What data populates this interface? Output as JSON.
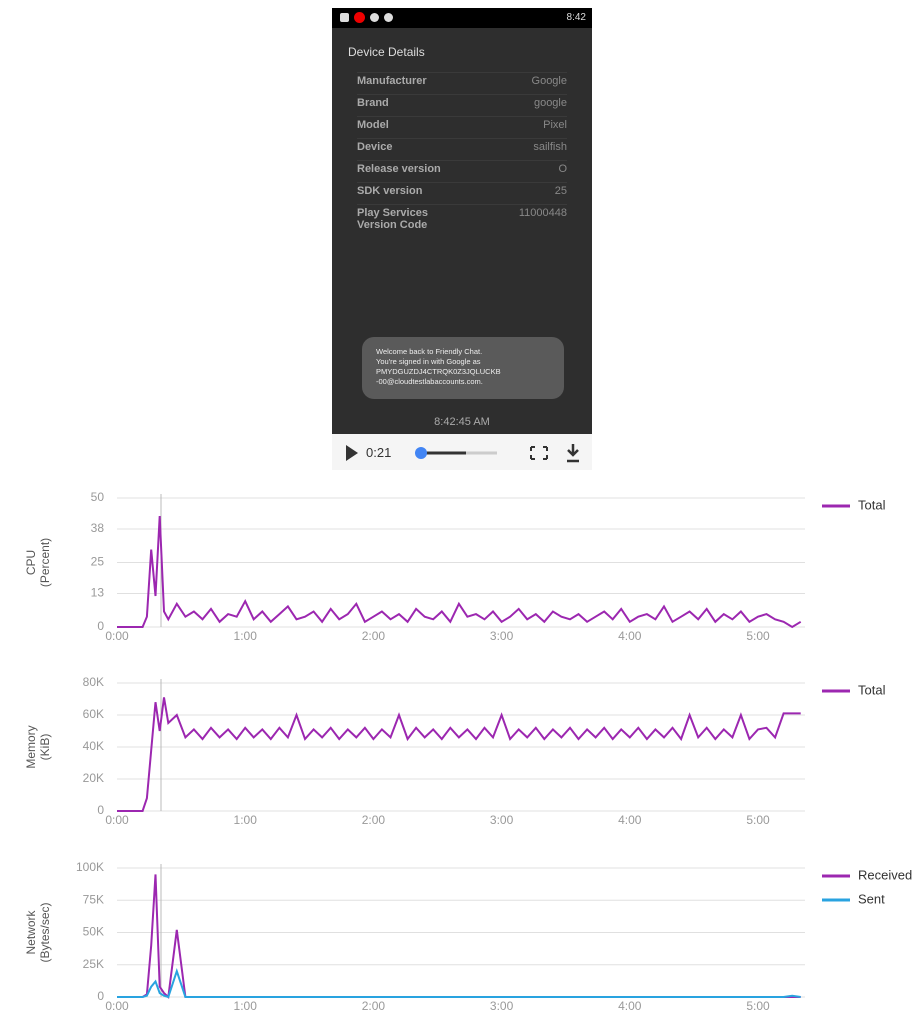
{
  "phone": {
    "status_time": "8:42",
    "screen_title": "Device Details",
    "rows": [
      {
        "label": "Manufacturer",
        "value": "Google"
      },
      {
        "label": "Brand",
        "value": "google"
      },
      {
        "label": "Model",
        "value": "Pixel"
      },
      {
        "label": "Device",
        "value": "sailfish"
      },
      {
        "label": "Release version",
        "value": "O"
      },
      {
        "label": "SDK version",
        "value": "25"
      },
      {
        "label": "Play Services Version Code",
        "value": "11000448"
      }
    ],
    "toast": [
      "Welcome back to Friendly Chat.",
      "You're signed in with Google as",
      "PMYDGUZDJ4CTRQK0Z3JQLUCKB",
      "-00@cloudtestlabaccounts.com."
    ],
    "timestamp": "8:42:45 AM"
  },
  "player": {
    "time": "0:21"
  },
  "chart_data": [
    {
      "type": "line",
      "y_label": [
        "CPU",
        "(Percent)"
      ],
      "x": [
        0,
        4,
        8,
        12,
        14,
        16,
        18,
        20,
        22,
        24,
        28,
        32,
        36,
        40,
        44,
        48,
        52,
        56,
        60,
        64,
        68,
        72,
        76,
        80,
        84,
        88,
        92,
        96,
        100,
        104,
        108,
        112,
        116,
        120,
        124,
        128,
        132,
        136,
        140,
        144,
        148,
        152,
        156,
        160,
        164,
        168,
        172,
        176,
        180,
        184,
        188,
        192,
        196,
        200,
        204,
        208,
        212,
        216,
        220,
        224,
        228,
        232,
        236,
        240,
        244,
        248,
        252,
        256,
        260,
        264,
        268,
        272,
        276,
        280,
        284,
        288,
        292,
        296,
        300,
        304,
        308,
        312,
        316,
        320
      ],
      "xlim": [
        0,
        322
      ],
      "xticks": [
        {
          "value": 0,
          "label": "0:00"
        },
        {
          "value": 60,
          "label": "1:00"
        },
        {
          "value": 120,
          "label": "2:00"
        },
        {
          "value": 180,
          "label": "3:00"
        },
        {
          "value": 240,
          "label": "4:00"
        },
        {
          "value": 300,
          "label": "5:00"
        }
      ],
      "ylim": [
        0,
        50
      ],
      "yticks": [
        0,
        13,
        25,
        38,
        50
      ],
      "grid": true,
      "series": [
        {
          "name": "Total",
          "color": "#9c27b0",
          "values": [
            0,
            0,
            0,
            0,
            4,
            30,
            12,
            43,
            6,
            3,
            9,
            4,
            6,
            3,
            7,
            2,
            5,
            4,
            10,
            3,
            6,
            2,
            5,
            8,
            3,
            4,
            6,
            2,
            7,
            3,
            5,
            9,
            2,
            4,
            6,
            3,
            5,
            2,
            7,
            4,
            3,
            6,
            2,
            9,
            4,
            5,
            3,
            6,
            2,
            4,
            7,
            3,
            5,
            2,
            6,
            4,
            3,
            5,
            2,
            4,
            6,
            3,
            7,
            2,
            4,
            5,
            3,
            8,
            2,
            4,
            6,
            3,
            7,
            2,
            5,
            3,
            6,
            2,
            4,
            5,
            3,
            2,
            0,
            2
          ]
        }
      ]
    },
    {
      "type": "line",
      "y_label": [
        "Memory",
        "(KiB)"
      ],
      "x": [
        0,
        4,
        8,
        12,
        14,
        16,
        18,
        20,
        22,
        24,
        28,
        32,
        36,
        40,
        44,
        48,
        52,
        56,
        60,
        64,
        68,
        72,
        76,
        80,
        84,
        88,
        92,
        96,
        100,
        104,
        108,
        112,
        116,
        120,
        124,
        128,
        132,
        136,
        140,
        144,
        148,
        152,
        156,
        160,
        164,
        168,
        172,
        176,
        180,
        184,
        188,
        192,
        196,
        200,
        204,
        208,
        212,
        216,
        220,
        224,
        228,
        232,
        236,
        240,
        244,
        248,
        252,
        256,
        260,
        264,
        268,
        272,
        276,
        280,
        284,
        288,
        292,
        296,
        300,
        304,
        308,
        312,
        316,
        320
      ],
      "xlim": [
        0,
        322
      ],
      "xticks": [
        {
          "value": 0,
          "label": "0:00"
        },
        {
          "value": 60,
          "label": "1:00"
        },
        {
          "value": 120,
          "label": "2:00"
        },
        {
          "value": 180,
          "label": "3:00"
        },
        {
          "value": 240,
          "label": "4:00"
        },
        {
          "value": 300,
          "label": "5:00"
        }
      ],
      "ylim": [
        0,
        80000
      ],
      "yticks": [
        0,
        {
          "value": 20000,
          "label": "20K"
        },
        {
          "value": 40000,
          "label": "40K"
        },
        {
          "value": 60000,
          "label": "60K"
        },
        {
          "value": 80000,
          "label": "80K"
        }
      ],
      "grid": true,
      "series": [
        {
          "name": "Total",
          "color": "#9c27b0",
          "values": [
            0,
            0,
            0,
            0,
            8000,
            38000,
            68000,
            50000,
            71000,
            55000,
            60000,
            46000,
            51000,
            45000,
            52000,
            46000,
            51000,
            45000,
            52000,
            46000,
            51000,
            45000,
            52000,
            46000,
            60000,
            45000,
            51000,
            46000,
            52000,
            45000,
            51000,
            46000,
            52000,
            45000,
            51000,
            46000,
            60000,
            45000,
            52000,
            46000,
            51000,
            45000,
            52000,
            46000,
            51000,
            45000,
            52000,
            46000,
            60000,
            45000,
            51000,
            46000,
            52000,
            45000,
            51000,
            46000,
            52000,
            45000,
            51000,
            46000,
            52000,
            45000,
            51000,
            46000,
            52000,
            45000,
            51000,
            46000,
            52000,
            45000,
            60000,
            46000,
            52000,
            45000,
            51000,
            46000,
            60000,
            45000,
            51000,
            52000,
            46000,
            61000,
            61000,
            61000
          ]
        }
      ]
    },
    {
      "type": "line",
      "y_label": [
        "Network",
        "(Bytes/sec)"
      ],
      "x": [
        0,
        4,
        8,
        12,
        14,
        16,
        18,
        20,
        22,
        24,
        28,
        32,
        36,
        40,
        44,
        48,
        52,
        56,
        60,
        64,
        68,
        72,
        76,
        80,
        84,
        88,
        92,
        96,
        100,
        104,
        108,
        112,
        116,
        120,
        124,
        128,
        132,
        136,
        140,
        144,
        148,
        152,
        156,
        160,
        164,
        168,
        172,
        176,
        180,
        184,
        188,
        192,
        196,
        200,
        204,
        208,
        212,
        216,
        220,
        224,
        228,
        232,
        236,
        240,
        244,
        248,
        252,
        256,
        260,
        264,
        268,
        272,
        276,
        280,
        284,
        288,
        292,
        296,
        300,
        304,
        308,
        312,
        316,
        320
      ],
      "xlim": [
        0,
        322
      ],
      "xticks": [
        {
          "value": 0,
          "label": "0:00"
        },
        {
          "value": 60,
          "label": "1:00"
        },
        {
          "value": 120,
          "label": "2:00"
        },
        {
          "value": 180,
          "label": "3:00"
        },
        {
          "value": 240,
          "label": "4:00"
        },
        {
          "value": 300,
          "label": "5:00"
        }
      ],
      "ylim": [
        0,
        100000
      ],
      "yticks": [
        0,
        {
          "value": 25000,
          "label": "25K"
        },
        {
          "value": 50000,
          "label": "50K"
        },
        {
          "value": 75000,
          "label": "75K"
        },
        {
          "value": 100000,
          "label": "100K"
        }
      ],
      "grid": true,
      "series": [
        {
          "name": "Received",
          "color": "#9c27b0",
          "values": [
            0,
            0,
            0,
            0,
            2000,
            40000,
            95000,
            8000,
            3000,
            0,
            52000,
            0,
            0,
            0,
            0,
            0,
            0,
            0,
            0,
            0,
            0,
            0,
            0,
            0,
            0,
            0,
            0,
            0,
            0,
            0,
            0,
            0,
            0,
            0,
            0,
            0,
            0,
            0,
            0,
            0,
            0,
            0,
            0,
            0,
            0,
            0,
            0,
            0,
            0,
            0,
            0,
            0,
            0,
            0,
            0,
            0,
            0,
            0,
            0,
            0,
            0,
            0,
            0,
            0,
            0,
            0,
            0,
            0,
            0,
            0,
            0,
            0,
            0,
            0,
            0,
            0,
            0,
            0,
            0,
            0,
            0,
            0,
            0,
            0
          ]
        },
        {
          "name": "Sent",
          "color": "#29a3e0",
          "values": [
            0,
            0,
            0,
            0,
            1000,
            8000,
            12000,
            3000,
            1000,
            0,
            20000,
            0,
            0,
            0,
            0,
            0,
            0,
            0,
            0,
            0,
            0,
            0,
            0,
            0,
            0,
            0,
            0,
            0,
            0,
            0,
            0,
            0,
            0,
            0,
            0,
            0,
            0,
            0,
            0,
            0,
            0,
            0,
            0,
            0,
            0,
            0,
            0,
            0,
            0,
            0,
            0,
            0,
            0,
            0,
            0,
            0,
            0,
            0,
            0,
            0,
            0,
            0,
            0,
            0,
            0,
            0,
            0,
            0,
            0,
            0,
            0,
            0,
            0,
            0,
            0,
            0,
            0,
            0,
            0,
            0,
            0,
            0,
            1000,
            0
          ]
        }
      ]
    }
  ]
}
